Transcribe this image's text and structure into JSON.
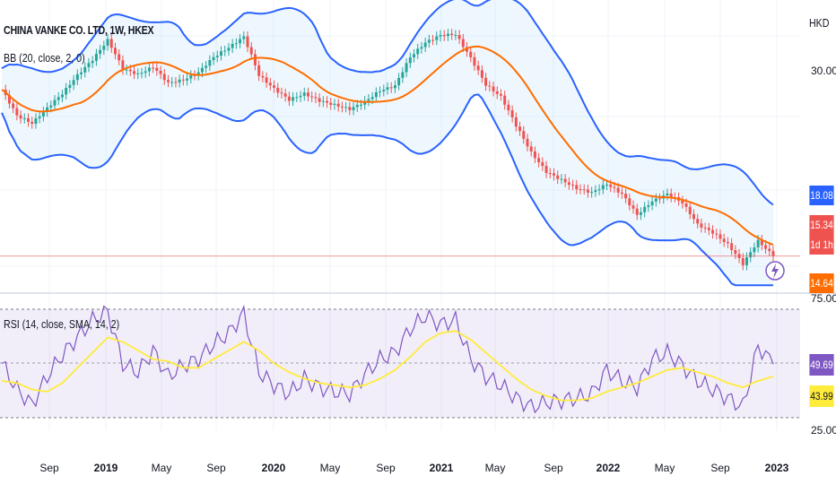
{
  "header": {
    "title": "CHINA VANKE CO. LTD, 1W, HKEX",
    "currency": "HKD",
    "bb_indicator": "BB (20, close, 2, 0)",
    "rsi_indicator": "RSI (14, close, SMA, 14, 2)"
  },
  "price_tags": {
    "upper": "18.08",
    "last": "15.34",
    "countdown": "1d 1h",
    "lower": "14.64"
  },
  "rsi_tags": {
    "rsi": "49.69",
    "rsi_ma": "43.99"
  },
  "colors": {
    "upper_tag": "#2962ff",
    "last_tag": "#ef5350",
    "countdown_tag": "#ef5350",
    "lower_tag": "#ff6d00",
    "rsi_tag": "#7e57c2",
    "rsi_ma_tag": "#ffeb3b",
    "up_candle": "#26a69a",
    "down_candle": "#ef5350",
    "bb_band": "#2962ff",
    "bb_basis": "#ff6d00",
    "rsi_line": "#7e57c2",
    "rsi_ma_line": "#ffeb3b"
  },
  "icons": {
    "alert": "lightning-icon"
  },
  "chart_data": [
    {
      "type": "candlestick",
      "title": "CHINA VANKE CO. LTD, 1W, HKEX",
      "y_ticks": [
        "30.00"
      ],
      "x_ticks": [
        "Sep",
        "2019",
        "May",
        "Sep",
        "2020",
        "May",
        "Sep",
        "2021",
        "May",
        "Sep",
        "2022",
        "May",
        "Sep",
        "2023"
      ],
      "y_range": [
        13.5,
        37.5
      ],
      "y_scale": "log",
      "x": [
        "2018-09",
        "2018-10",
        "2018-11",
        "2018-12",
        "2019-01",
        "2019-02",
        "2019-03",
        "2019-04",
        "2019-05",
        "2019-06",
        "2019-07",
        "2019-08",
        "2019-09",
        "2019-10",
        "2019-11",
        "2019-12",
        "2020-01",
        "2020-02",
        "2020-03",
        "2020-04",
        "2020-05",
        "2020-06",
        "2020-07",
        "2020-08",
        "2020-09",
        "2020-10",
        "2020-11",
        "2020-12",
        "2021-01",
        "2021-02",
        "2021-03",
        "2021-04",
        "2021-05",
        "2021-06",
        "2021-07",
        "2021-08",
        "2021-09",
        "2021-10",
        "2021-11",
        "2021-12",
        "2022-01",
        "2022-02",
        "2022-03",
        "2022-04",
        "2022-05",
        "2022-06",
        "2022-07",
        "2022-08",
        "2022-09",
        "2022-10",
        "2022-11",
        "2022-12"
      ],
      "series": [
        {
          "values": [
            28.0,
            25.5,
            24.8,
            26.2,
            27.6,
            29.5,
            31.2,
            33.5,
            30.2,
            29.6,
            30.4,
            28.7,
            29.0,
            29.8,
            31.5,
            32.6,
            33.9,
            29.5,
            28.1,
            27.0,
            27.6,
            26.9,
            26.5,
            26.1,
            26.8,
            27.9,
            28.4,
            31.5,
            33.2,
            34.1,
            34.2,
            31.4,
            28.5,
            27.3,
            24.6,
            22.3,
            20.8,
            20.2,
            19.6,
            19.3,
            19.9,
            19.2,
            17.8,
            18.7,
            19.2,
            18.6,
            17.2,
            16.7,
            16.0,
            14.9,
            16.2,
            15.34
          ]
        }
      ]
    },
    {
      "type": "line",
      "title": "RSI (14, close, SMA, 14, 2)",
      "y_ticks": [
        "75.00",
        "25.00"
      ],
      "y_range": [
        20,
        80
      ],
      "x": [
        "2018-09",
        "2018-10",
        "2018-11",
        "2018-12",
        "2019-01",
        "2019-02",
        "2019-03",
        "2019-04",
        "2019-05",
        "2019-06",
        "2019-07",
        "2019-08",
        "2019-09",
        "2019-10",
        "2019-11",
        "2019-12",
        "2020-01",
        "2020-02",
        "2020-03",
        "2020-04",
        "2020-05",
        "2020-06",
        "2020-07",
        "2020-08",
        "2020-09",
        "2020-10",
        "2020-11",
        "2020-12",
        "2021-01",
        "2021-02",
        "2021-03",
        "2021-04",
        "2021-05",
        "2021-06",
        "2021-07",
        "2021-08",
        "2021-09",
        "2021-10",
        "2021-11",
        "2021-12",
        "2022-01",
        "2022-02",
        "2022-03",
        "2022-04",
        "2022-05",
        "2022-06",
        "2022-07",
        "2022-08",
        "2022-09",
        "2022-10",
        "2022-11",
        "2022-12"
      ],
      "series": [
        {
          "values": [
            50,
            38,
            31,
            44,
            54,
            62,
            70,
            74,
            50,
            46,
            56,
            44,
            49,
            52,
            59,
            64,
            73,
            46,
            40,
            36,
            43,
            39,
            37,
            36,
            45,
            52,
            55,
            66,
            72,
            68,
            70,
            52,
            44,
            40,
            34,
            30,
            32,
            33,
            34,
            36,
            47,
            42,
            39,
            52,
            55,
            49,
            42,
            38,
            34,
            30,
            58,
            49.69
          ]
        },
        {
          "values": [
            42,
            41,
            38,
            37,
            41,
            48,
            55,
            62,
            60,
            56,
            52,
            51,
            48,
            48,
            52,
            56,
            60,
            56,
            50,
            46,
            43,
            41,
            40,
            39,
            40,
            43,
            47,
            53,
            60,
            64,
            65,
            61,
            55,
            49,
            43,
            38,
            35,
            33,
            33,
            34,
            37,
            39,
            41,
            44,
            47,
            48,
            46,
            44,
            41,
            39,
            42,
            43.99
          ]
        }
      ]
    }
  ]
}
